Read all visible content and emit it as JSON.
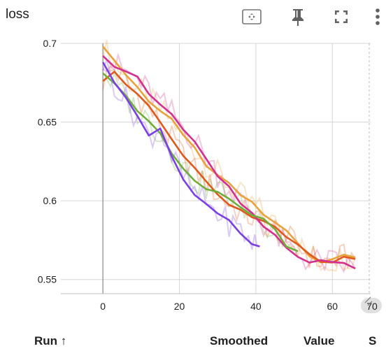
{
  "card": {
    "title": "loss"
  },
  "toolbar": {
    "icons": [
      "fit-domain-icon",
      "pin-icon",
      "fullscreen-icon",
      "more-vert-icon"
    ]
  },
  "table": {
    "columns": {
      "run": "Run ↑",
      "smoothed": "Smoothed",
      "value": "Value",
      "step": "S"
    }
  },
  "chart_data": {
    "type": "line",
    "title": "",
    "xlabel": "",
    "ylabel": "",
    "xlim": [
      -11,
      70
    ],
    "ylim": [
      0.541,
      0.7
    ],
    "x_ticks": [
      "0",
      "20",
      "40",
      "60",
      "70"
    ],
    "y_ticks": [
      "0.55",
      "0.6",
      "0.65",
      "0.7"
    ],
    "grid": true,
    "series": [
      {
        "color": "#e8a33d",
        "x": [
          0,
          3,
          6,
          9,
          12,
          15,
          18,
          21,
          24,
          27,
          30,
          33,
          36,
          39,
          42,
          45,
          48,
          51,
          54,
          57,
          60,
          63,
          66
        ],
        "y": [
          0.698,
          0.688,
          0.678,
          0.671,
          0.664,
          0.658,
          0.651,
          0.642,
          0.633,
          0.624,
          0.617,
          0.61,
          0.603,
          0.598,
          0.592,
          0.585,
          0.58,
          0.572,
          0.566,
          0.561,
          0.562,
          0.565,
          0.564
        ]
      },
      {
        "color": "#e05a1f",
        "x": [
          0,
          3,
          6,
          9,
          12,
          15,
          18,
          21,
          24,
          27,
          30,
          33,
          36,
          39,
          42,
          45,
          48,
          51,
          54,
          57,
          60,
          63,
          66
        ],
        "y": [
          0.676,
          0.684,
          0.675,
          0.667,
          0.659,
          0.648,
          0.639,
          0.628,
          0.619,
          0.612,
          0.604,
          0.598,
          0.593,
          0.589,
          0.586,
          0.582,
          0.577,
          0.571,
          0.565,
          0.561,
          0.562,
          0.564,
          0.563
        ]
      },
      {
        "color": "#d3308f",
        "x": [
          0,
          3,
          6,
          9,
          12,
          15,
          18,
          21,
          24,
          27,
          30,
          33,
          36,
          39,
          42,
          45,
          48,
          51,
          54,
          57,
          60,
          63,
          66
        ],
        "y": [
          0.692,
          0.686,
          0.682,
          0.677,
          0.669,
          0.662,
          0.656,
          0.647,
          0.638,
          0.628,
          0.617,
          0.608,
          0.6,
          0.592,
          0.585,
          0.578,
          0.571,
          0.566,
          0.562,
          0.561,
          0.561,
          0.559,
          0.557
        ]
      },
      {
        "color": "#6fae3a",
        "x": [
          0,
          3,
          6,
          9,
          12,
          15,
          18,
          21,
          24,
          27,
          30,
          33,
          36,
          39,
          42,
          45,
          48,
          51
        ],
        "y": [
          0.681,
          0.674,
          0.665,
          0.657,
          0.651,
          0.643,
          0.631,
          0.622,
          0.613,
          0.609,
          0.607,
          0.603,
          0.597,
          0.592,
          0.588,
          0.58,
          0.572,
          0.568
        ]
      },
      {
        "color": "#7a3fe6",
        "x": [
          0,
          3,
          6,
          9,
          12,
          15,
          18,
          21,
          24,
          27,
          30,
          33,
          36,
          39,
          41
        ],
        "y": [
          0.688,
          0.675,
          0.664,
          0.653,
          0.641,
          0.646,
          0.628,
          0.615,
          0.604,
          0.599,
          0.592,
          0.586,
          0.581,
          0.574,
          0.571
        ]
      }
    ]
  }
}
